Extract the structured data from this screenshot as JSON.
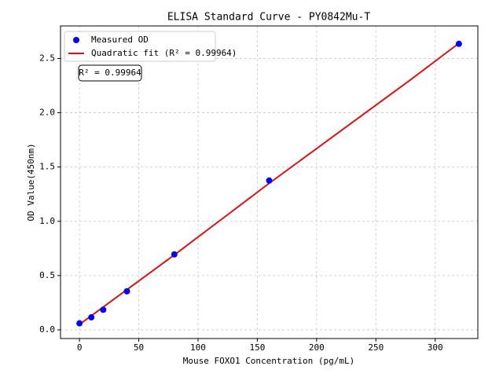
{
  "chart_data": {
    "type": "scatter",
    "title": "ELISA Standard Curve - PY0842Mu-T",
    "x_label": "Mouse FOXO1 Concentration (pg/mL)",
    "y_label": "OD Value(450nm)",
    "xlim": [
      -16,
      336
    ],
    "ylim": [
      -0.08,
      2.8
    ],
    "xticks": [
      0,
      50,
      100,
      150,
      200,
      250,
      300
    ],
    "yticks": [
      {
        "value": 0,
        "label": "0.0"
      },
      {
        "value": 0.5,
        "label": "0.5"
      },
      {
        "value": 1,
        "label": "1.0"
      },
      {
        "value": 1.5,
        "label": "1.5"
      },
      {
        "value": 2,
        "label": "2.0"
      },
      {
        "value": 2.5,
        "label": "2.5"
      }
    ],
    "grid": true,
    "legend": "upper left",
    "annotation": "R² = 0.99964",
    "series": [
      {
        "name": "Measured OD",
        "type": "scatter",
        "color": "#0000ff",
        "x": [
          0,
          10,
          20,
          40,
          80,
          160,
          320
        ],
        "values": [
          0.06,
          0.115,
          0.185,
          0.355,
          0.695,
          1.375,
          2.635
        ]
      },
      {
        "name": "Quadratic fit (R² = 0.99964)",
        "type": "line",
        "color": "#dd1111",
        "x": [
          0,
          40,
          80,
          120,
          160,
          200,
          240,
          280,
          320
        ],
        "values": [
          0.05,
          0.37,
          0.69,
          1.02,
          1.35,
          1.67,
          1.99,
          2.31,
          2.64
        ]
      }
    ]
  }
}
